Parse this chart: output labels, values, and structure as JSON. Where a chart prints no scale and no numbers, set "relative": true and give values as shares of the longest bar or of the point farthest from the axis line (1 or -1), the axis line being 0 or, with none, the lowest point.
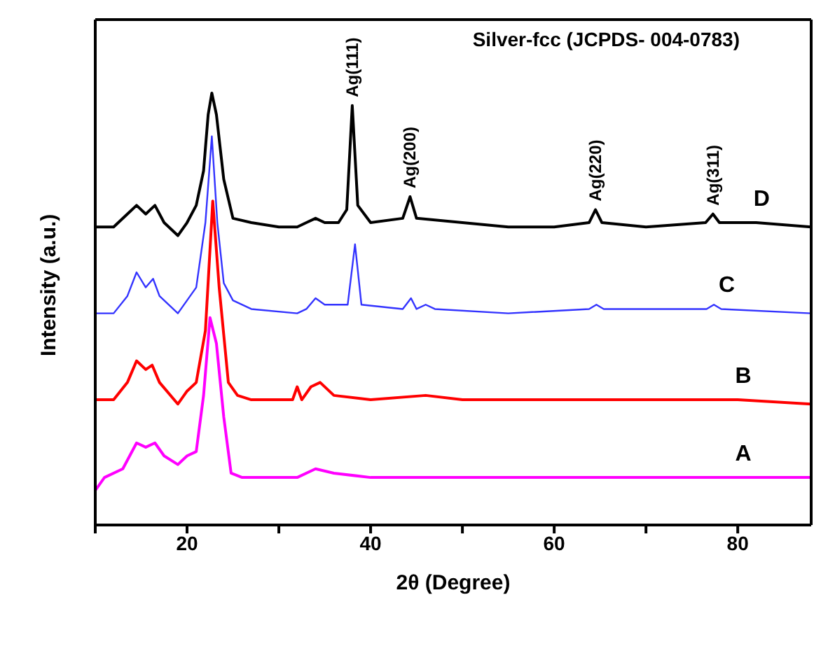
{
  "chart_data": {
    "type": "line",
    "relative": true,
    "xlabel": "2θ (Degree)",
    "ylabel": "Intensity (a.u.)",
    "xlim": [
      10,
      88
    ],
    "xticks": [
      {
        "value": 10,
        "label": null
      },
      20,
      {
        "value": 30,
        "label": null
      },
      40,
      {
        "value": 50,
        "label": null
      },
      60,
      {
        "value": 70,
        "label": null
      },
      80
    ],
    "marker": "none",
    "line_style": "solid",
    "annotations": [
      "Silver-fcc (JCPDS- 004-0783)",
      {
        "text": "Ag(111)",
        "x": 38,
        "y": 0.971
      },
      {
        "text": "Ag(200)",
        "x": 44.3,
        "y": 0.76
      },
      {
        "text": "Ag(220)",
        "x": 64.5,
        "y": 0.73
      },
      {
        "text": "Ag(311)",
        "x": 77.3,
        "y": 0.72
      }
    ],
    "series": [
      {
        "name": "D",
        "color": "#000000",
        "x": [
          10,
          12,
          13.5,
          14.5,
          15.5,
          16.5,
          17.5,
          19,
          20,
          21,
          21.8,
          22.3,
          22.7,
          23.2,
          24,
          25,
          27,
          30,
          32,
          33,
          34,
          35,
          36.5,
          37.4,
          38,
          38.6,
          40,
          43.5,
          44.3,
          45,
          50,
          55,
          60,
          63.8,
          64.5,
          65.2,
          70,
          76.5,
          77.3,
          78,
          82,
          88
        ],
        "values": [
          0.69,
          0.69,
          0.72,
          0.74,
          0.72,
          0.74,
          0.7,
          0.67,
          0.7,
          0.74,
          0.82,
          0.95,
          1.0,
          0.95,
          0.8,
          0.71,
          0.7,
          0.69,
          0.69,
          0.7,
          0.71,
          0.7,
          0.7,
          0.73,
          0.971,
          0.74,
          0.7,
          0.71,
          0.76,
          0.71,
          0.7,
          0.69,
          0.69,
          0.7,
          0.73,
          0.7,
          0.69,
          0.7,
          0.72,
          0.7,
          0.7,
          0.69
        ]
      },
      {
        "name": "C",
        "color": "#3333ff",
        "x": [
          10,
          12,
          13.5,
          14.5,
          15.5,
          16.3,
          17,
          19,
          20,
          21,
          22,
          22.7,
          23.3,
          24,
          25,
          27,
          32,
          33,
          34,
          35,
          37.5,
          38.3,
          39,
          43.5,
          44.4,
          45,
          46,
          47,
          55,
          63.8,
          64.6,
          65.4,
          76.6,
          77.4,
          78.2,
          88
        ],
        "values": [
          0.49,
          0.49,
          0.53,
          0.585,
          0.55,
          0.57,
          0.53,
          0.49,
          0.52,
          0.55,
          0.7,
          0.9,
          0.7,
          0.56,
          0.52,
          0.5,
          0.49,
          0.5,
          0.525,
          0.51,
          0.51,
          0.65,
          0.51,
          0.5,
          0.525,
          0.5,
          0.51,
          0.5,
          0.49,
          0.5,
          0.51,
          0.5,
          0.5,
          0.51,
          0.5,
          0.49
        ]
      },
      {
        "name": "B",
        "color": "#ff0000",
        "x": [
          10,
          12,
          13.5,
          14.5,
          15.5,
          16.2,
          17,
          19,
          20,
          21,
          22,
          22.8,
          23.5,
          24.5,
          25.5,
          27,
          31.5,
          32,
          32.5,
          33.5,
          34.5,
          36,
          40,
          46,
          50,
          60,
          70,
          80,
          88
        ],
        "values": [
          0.29,
          0.29,
          0.33,
          0.38,
          0.36,
          0.37,
          0.33,
          0.28,
          0.31,
          0.33,
          0.45,
          0.75,
          0.55,
          0.33,
          0.3,
          0.29,
          0.29,
          0.32,
          0.29,
          0.32,
          0.33,
          0.3,
          0.29,
          0.3,
          0.29,
          0.29,
          0.29,
          0.29,
          0.28
        ]
      },
      {
        "name": "A",
        "color": "#ff00ff",
        "x": [
          10,
          11,
          13,
          14.5,
          15.5,
          16.5,
          17.5,
          19,
          20,
          21,
          21.8,
          22.5,
          23.2,
          24,
          24.8,
          26,
          30,
          32,
          34,
          36,
          40,
          50,
          60,
          70,
          80,
          88
        ],
        "values": [
          0.08,
          0.11,
          0.13,
          0.19,
          0.18,
          0.19,
          0.16,
          0.14,
          0.16,
          0.17,
          0.3,
          0.48,
          0.42,
          0.25,
          0.12,
          0.11,
          0.11,
          0.11,
          0.13,
          0.12,
          0.11,
          0.11,
          0.11,
          0.11,
          0.11,
          0.11
        ]
      }
    ]
  }
}
